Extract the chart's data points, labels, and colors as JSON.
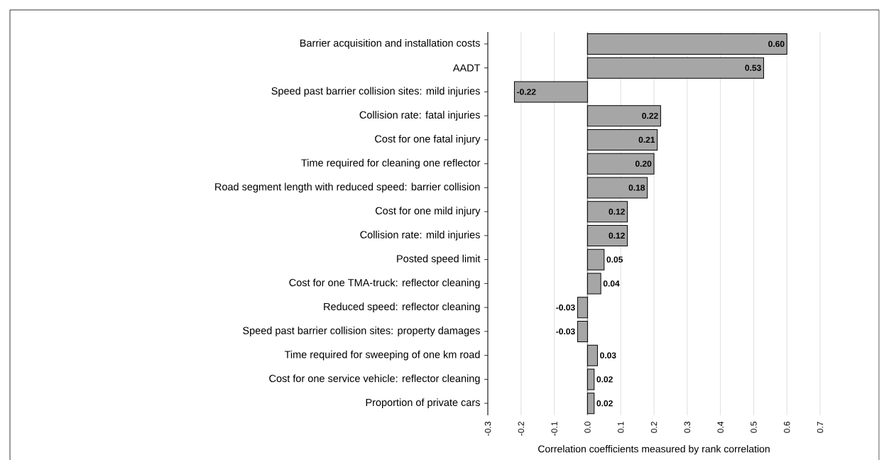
{
  "chart_data": {
    "type": "bar",
    "orientation": "horizontal",
    "xlabel": "Correlation coefficients measured by rank correlation",
    "categories": [
      "Barrier acquisition and installation costs",
      "AADT",
      "Speed past barrier collision sites: mild injuries",
      "Collision rate: fatal injuries",
      "Cost for one fatal injury",
      "Time required for cleaning one reflector",
      "Road segment length with reduced speed: barrier collision",
      "Cost for one mild injury",
      "Collision rate: mild injuries",
      "Posted speed limit",
      "Cost for one TMA-truck: reflector cleaning",
      "Reduced speed: reflector cleaning",
      "Speed past barrier collision sites: property damages",
      "Time required for sweeping of one km road",
      "Cost for one service vehicle: reflector cleaning",
      "Proportion of private cars"
    ],
    "values": [
      0.6,
      0.53,
      -0.22,
      0.22,
      0.21,
      0.2,
      0.18,
      0.12,
      0.12,
      0.05,
      0.04,
      -0.03,
      -0.03,
      0.03,
      0.02,
      0.02
    ],
    "value_labels": [
      "0.60",
      "0.53",
      "-0.22",
      "0.22",
      "0.21",
      "0.20",
      "0.18",
      "0.12",
      "0.12",
      "0.05",
      "0.04",
      "-0.03",
      "-0.03",
      "0.03",
      "0.02",
      "0.02"
    ],
    "color": "#a6a6a6",
    "xlim": [
      -0.3,
      0.7
    ],
    "xticks": [
      -0.3,
      -0.2,
      -0.1,
      {
        "value": 0,
        "label": "0.0"
      },
      0.1,
      0.2,
      0.3,
      0.4,
      0.5,
      0.6,
      0.7
    ],
    "grid": "x",
    "ref_lines": [
      {
        "axis": "x",
        "value": 0,
        "color": "#999999"
      }
    ]
  }
}
